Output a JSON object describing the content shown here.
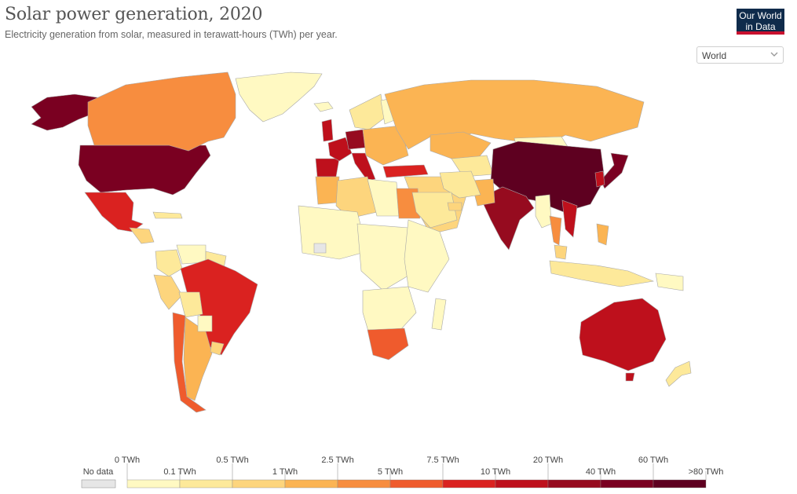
{
  "header": {
    "title": "Solar power generation, 2020",
    "subtitle": "Electricity generation from solar, measured in terawatt-hours (TWh) per year.",
    "logo_line1": "Our World",
    "logo_line2": "in Data"
  },
  "region_select": {
    "value": "World"
  },
  "colors": {
    "no_data": "#e6e6e6",
    "bins": [
      "#fff9c2",
      "#fde99a",
      "#fdd57d",
      "#fbb453",
      "#f78d3f",
      "#ef5b2d",
      "#da2220",
      "#be101c",
      "#960b1f",
      "#7a0021",
      "#5e0020"
    ],
    "ocean": "#ffffff",
    "border": "#a8a8a8"
  },
  "legend": {
    "no_data_label": "No data",
    "top_labels": [
      "0 TWh",
      "0.5 TWh",
      "2.5 TWh",
      "7.5 TWh",
      "20 TWh",
      "60 TWh"
    ],
    "bottom_labels": [
      "0.1 TWh",
      "1 TWh",
      "5 TWh",
      "10 TWh",
      "40 TWh",
      ">80 TWh"
    ]
  },
  "regions": [
    {
      "name": "United States",
      "bin": 9
    },
    {
      "name": "Alaska",
      "bin": 9
    },
    {
      "name": "Canada",
      "bin": 4
    },
    {
      "name": "Greenland",
      "bin": 0
    },
    {
      "name": "Mexico",
      "bin": 6
    },
    {
      "name": "Central America",
      "bin": 2
    },
    {
      "name": "Caribbean",
      "bin": 1
    },
    {
      "name": "Colombia",
      "bin": 1
    },
    {
      "name": "Venezuela",
      "bin": 0
    },
    {
      "name": "Guianas",
      "bin": 1
    },
    {
      "name": "Brazil",
      "bin": 6
    },
    {
      "name": "Peru",
      "bin": 2
    },
    {
      "name": "Bolivia",
      "bin": 1
    },
    {
      "name": "Chile",
      "bin": 5
    },
    {
      "name": "Argentina",
      "bin": 3
    },
    {
      "name": "Paraguay",
      "bin": 0
    },
    {
      "name": "Uruguay",
      "bin": 2
    },
    {
      "name": "Iceland",
      "bin": 0
    },
    {
      "name": "United Kingdom",
      "bin": 7
    },
    {
      "name": "Spain",
      "bin": 7
    },
    {
      "name": "France",
      "bin": 7
    },
    {
      "name": "Germany",
      "bin": 8
    },
    {
      "name": "Italy",
      "bin": 7
    },
    {
      "name": "Scandinavia",
      "bin": 1
    },
    {
      "name": "Finland",
      "bin": 0
    },
    {
      "name": "Eastern Europe",
      "bin": 3
    },
    {
      "name": "Turkey",
      "bin": 6
    },
    {
      "name": "Russia",
      "bin": 3
    },
    {
      "name": "Kazakhstan",
      "bin": 3
    },
    {
      "name": "Central Asia",
      "bin": 1
    },
    {
      "name": "Mongolia",
      "bin": 0
    },
    {
      "name": "China",
      "bin": 10
    },
    {
      "name": "Japan",
      "bin": 9
    },
    {
      "name": "South Korea",
      "bin": 7
    },
    {
      "name": "India",
      "bin": 8
    },
    {
      "name": "Pakistan",
      "bin": 3
    },
    {
      "name": "Middle East",
      "bin": 2
    },
    {
      "name": "Iran",
      "bin": 1
    },
    {
      "name": "Myanmar",
      "bin": 0
    },
    {
      "name": "Thailand",
      "bin": 4
    },
    {
      "name": "Vietnam",
      "bin": 7
    },
    {
      "name": "Philippines",
      "bin": 3
    },
    {
      "name": "Indonesia",
      "bin": 1
    },
    {
      "name": "Malaysia",
      "bin": 2
    },
    {
      "name": "Papua New Guinea",
      "bin": 0
    },
    {
      "name": "Australia",
      "bin": 7
    },
    {
      "name": "Tasmania",
      "bin": 7
    },
    {
      "name": "New Zealand",
      "bin": 1
    },
    {
      "name": "Morocco",
      "bin": 3
    },
    {
      "name": "Algeria",
      "bin": 2
    },
    {
      "name": "Libya",
      "bin": 0
    },
    {
      "name": "Egypt",
      "bin": 4
    },
    {
      "name": "West Africa",
      "bin": 0
    },
    {
      "name": "Central Africa",
      "bin": 0
    },
    {
      "name": "East Africa",
      "bin": 0
    },
    {
      "name": "Southern Africa",
      "bin": 0
    },
    {
      "name": "South Africa",
      "bin": 5
    },
    {
      "name": "Madagascar",
      "bin": 0
    },
    {
      "name": "Western Sahara",
      "bin": -1
    },
    {
      "name": "Saudi Arabia",
      "bin": 1
    },
    {
      "name": "UAE",
      "bin": 2
    }
  ]
}
